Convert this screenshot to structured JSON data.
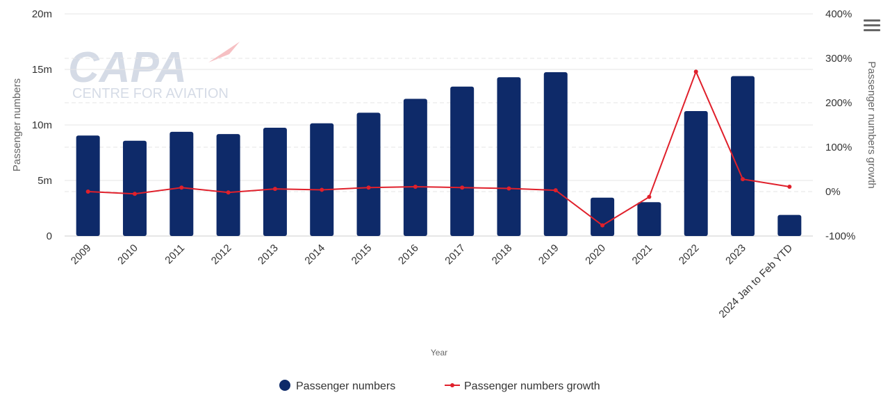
{
  "chart_data": {
    "type": "bar",
    "categories": [
      "2009",
      "2010",
      "2011",
      "2012",
      "2013",
      "2014",
      "2015",
      "2016",
      "2017",
      "2018",
      "2019",
      "2020",
      "2021",
      "2022",
      "2023",
      "2024 Jan to Feb YTD"
    ],
    "series": [
      {
        "name": "Passenger numbers",
        "type": "bar",
        "axis": "left",
        "values": [
          9.05,
          8.58,
          9.38,
          9.18,
          9.75,
          10.15,
          11.1,
          12.35,
          13.45,
          14.3,
          14.75,
          3.45,
          3.05,
          11.25,
          14.4,
          1.9
        ]
      },
      {
        "name": "Passenger numbers growth",
        "type": "line",
        "axis": "right",
        "values": [
          0,
          -5,
          9,
          -2,
          6,
          4,
          9,
          11,
          9,
          7,
          3,
          -76,
          -12,
          270,
          28,
          11
        ]
      }
    ],
    "xlabel": "Year",
    "ylabel": "Passenger numbers",
    "y2label": "Passenger numbers growth",
    "ylim": [
      0,
      20
    ],
    "y2lim": [
      -100,
      400
    ],
    "yticks": [
      "0",
      "5m",
      "10m",
      "15m",
      "20m"
    ],
    "y2ticks": [
      "-100%",
      "0%",
      "100%",
      "200%",
      "300%",
      "400%"
    ],
    "legend": [
      "Passenger numbers",
      "Passenger numbers growth"
    ],
    "legend_position": "bottom",
    "grid": true,
    "colors": {
      "bar": "#0e2a69",
      "line": "#e0202b",
      "grid": "#e6e6e6"
    }
  },
  "watermark": {
    "brand": "CAPA",
    "tagline": "CENTRE FOR AVIATION"
  }
}
